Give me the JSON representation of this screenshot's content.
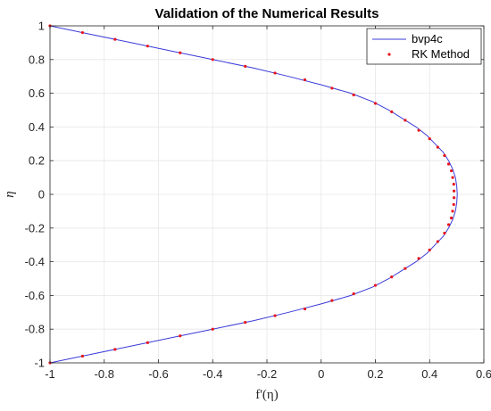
{
  "chart_data": {
    "type": "line",
    "title": "Validation of the Numerical Results",
    "xlabel": "f'(η)",
    "ylabel": "η",
    "xlim": [
      -1,
      0.6
    ],
    "ylim": [
      -1,
      1
    ],
    "xticks": [
      "-1",
      "-0.8",
      "-0.6",
      "-0.4",
      "-0.2",
      "0",
      "0.2",
      "0.4",
      "0.6"
    ],
    "yticks": [
      "-1",
      "-0.8",
      "-0.6",
      "-0.4",
      "-0.2",
      "0",
      "0.2",
      "0.4",
      "0.6",
      "0.8",
      "1"
    ],
    "grid": true,
    "legend_position": "top-right",
    "series": [
      {
        "name": "bvp4c",
        "style": "line",
        "color": "#3b3bd9",
        "points": [
          {
            "x": -1,
            "y": -1
          },
          {
            "x": -0.85,
            "y": -0.95
          },
          {
            "x": -0.7,
            "y": -0.9
          },
          {
            "x": -0.55,
            "y": -0.85
          },
          {
            "x": -0.4,
            "y": -0.8
          },
          {
            "x": -0.25,
            "y": -0.75
          },
          {
            "x": -0.12,
            "y": -0.7
          },
          {
            "x": 0,
            "y": -0.65
          },
          {
            "x": 0.11,
            "y": -0.6
          },
          {
            "x": 0.19,
            "y": -0.55
          },
          {
            "x": 0.25,
            "y": -0.5
          },
          {
            "x": 0.3,
            "y": -0.45
          },
          {
            "x": 0.35,
            "y": -0.4
          },
          {
            "x": 0.39,
            "y": -0.35
          },
          {
            "x": 0.42,
            "y": -0.3
          },
          {
            "x": 0.45,
            "y": -0.25
          },
          {
            "x": 0.47,
            "y": -0.2
          },
          {
            "x": 0.485,
            "y": -0.15
          },
          {
            "x": 0.495,
            "y": -0.1
          },
          {
            "x": 0.5,
            "y": -0.05
          },
          {
            "x": 0.502,
            "y": 0
          },
          {
            "x": 0.5,
            "y": 0.05
          },
          {
            "x": 0.495,
            "y": 0.1
          },
          {
            "x": 0.485,
            "y": 0.15
          },
          {
            "x": 0.47,
            "y": 0.2
          },
          {
            "x": 0.45,
            "y": 0.25
          },
          {
            "x": 0.42,
            "y": 0.3
          },
          {
            "x": 0.39,
            "y": 0.35
          },
          {
            "x": 0.35,
            "y": 0.4
          },
          {
            "x": 0.3,
            "y": 0.45
          },
          {
            "x": 0.25,
            "y": 0.5
          },
          {
            "x": 0.19,
            "y": 0.55
          },
          {
            "x": 0.11,
            "y": 0.6
          },
          {
            "x": 0,
            "y": 0.65
          },
          {
            "x": -0.12,
            "y": 0.7
          },
          {
            "x": -0.25,
            "y": 0.75
          },
          {
            "x": -0.4,
            "y": 0.8
          },
          {
            "x": -0.55,
            "y": 0.85
          },
          {
            "x": -0.7,
            "y": 0.9
          },
          {
            "x": -0.85,
            "y": 0.95
          },
          {
            "x": -1,
            "y": 1
          }
        ]
      },
      {
        "name": "RK Method",
        "style": "markers",
        "color": "#e8141c",
        "points": [
          {
            "x": -1,
            "y": -1
          },
          {
            "x": -0.88,
            "y": -0.96
          },
          {
            "x": -0.76,
            "y": -0.92
          },
          {
            "x": -0.64,
            "y": -0.88
          },
          {
            "x": -0.52,
            "y": -0.84
          },
          {
            "x": -0.4,
            "y": -0.8
          },
          {
            "x": -0.28,
            "y": -0.76
          },
          {
            "x": -0.17,
            "y": -0.72
          },
          {
            "x": -0.06,
            "y": -0.68
          },
          {
            "x": 0.04,
            "y": -0.63
          },
          {
            "x": 0.12,
            "y": -0.59
          },
          {
            "x": 0.2,
            "y": -0.54
          },
          {
            "x": 0.26,
            "y": -0.49
          },
          {
            "x": 0.31,
            "y": -0.44
          },
          {
            "x": 0.36,
            "y": -0.38
          },
          {
            "x": 0.4,
            "y": -0.33
          },
          {
            "x": 0.43,
            "y": -0.28
          },
          {
            "x": 0.455,
            "y": -0.23
          },
          {
            "x": 0.47,
            "y": -0.18
          },
          {
            "x": 0.48,
            "y": -0.14
          },
          {
            "x": 0.485,
            "y": -0.1
          },
          {
            "x": 0.489,
            "y": -0.06
          },
          {
            "x": 0.49,
            "y": -0.02
          },
          {
            "x": 0.49,
            "y": 0.02
          },
          {
            "x": 0.489,
            "y": 0.06
          },
          {
            "x": 0.485,
            "y": 0.1
          },
          {
            "x": 0.48,
            "y": 0.14
          },
          {
            "x": 0.47,
            "y": 0.18
          },
          {
            "x": 0.455,
            "y": 0.23
          },
          {
            "x": 0.43,
            "y": 0.28
          },
          {
            "x": 0.4,
            "y": 0.33
          },
          {
            "x": 0.36,
            "y": 0.38
          },
          {
            "x": 0.31,
            "y": 0.44
          },
          {
            "x": 0.26,
            "y": 0.49
          },
          {
            "x": 0.2,
            "y": 0.54
          },
          {
            "x": 0.12,
            "y": 0.59
          },
          {
            "x": 0.04,
            "y": 0.63
          },
          {
            "x": -0.06,
            "y": 0.68
          },
          {
            "x": -0.17,
            "y": 0.72
          },
          {
            "x": -0.28,
            "y": 0.76
          },
          {
            "x": -0.4,
            "y": 0.8
          },
          {
            "x": -0.52,
            "y": 0.84
          },
          {
            "x": -0.64,
            "y": 0.88
          },
          {
            "x": -0.76,
            "y": 0.92
          },
          {
            "x": -0.88,
            "y": 0.96
          },
          {
            "x": -1,
            "y": 1
          }
        ]
      }
    ]
  }
}
